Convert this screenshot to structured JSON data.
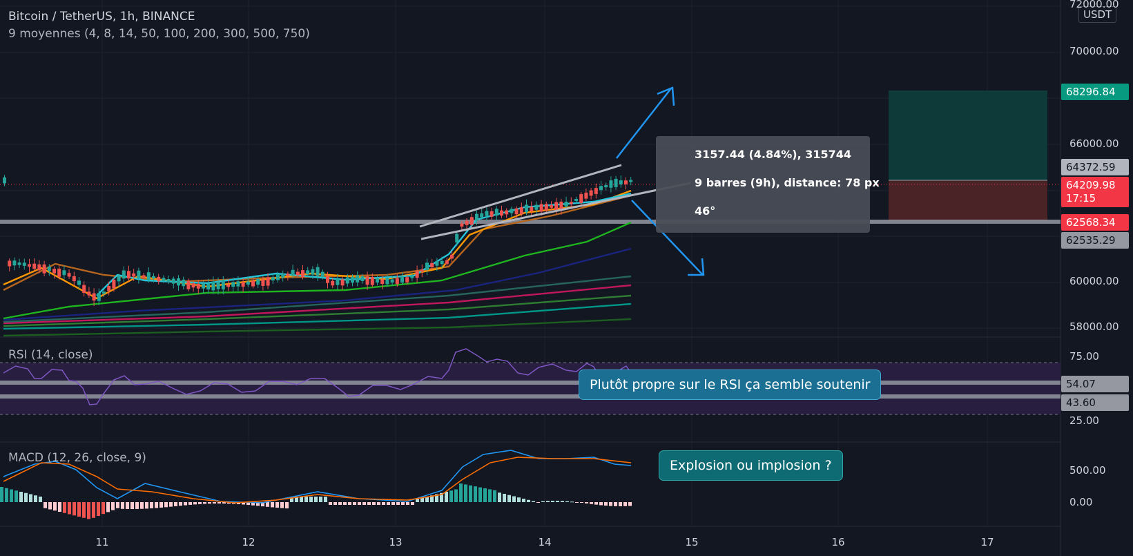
{
  "header": {
    "symbol": "Bitcoin / TetherUS, 1h, BINANCE",
    "indicator": "9 moyennes (4, 8, 14, 50, 100, 200, 300, 500, 750)"
  },
  "price_axis": {
    "currency": "USDT",
    "ticks": [
      "72000.00",
      "70000.00",
      "66000.00",
      "60000.00",
      "58000.00"
    ]
  },
  "price_labels": {
    "target": "68296.84",
    "upper": "64372.59",
    "current": "64209.98",
    "countdown": "17:15",
    "stop": "62568.34",
    "support": "62535.29"
  },
  "time_axis": [
    "11",
    "12",
    "13",
    "14",
    "15",
    "16",
    "17"
  ],
  "measure": {
    "line1": "3157.44 (4.84%), 315744",
    "line2": "9 barres (9h), distance: 78 px",
    "line3": "46°"
  },
  "rsi": {
    "title": "RSI (14, close)",
    "ticks": [
      "75.00",
      "25.00"
    ],
    "levels": [
      "54.07",
      "43.60"
    ],
    "note": "Plutôt propre sur le RSI ça semble soutenir"
  },
  "macd": {
    "title": "MACD (12, 26, close, 9)",
    "ticks": [
      "500.00",
      "0.00"
    ],
    "note": "Explosion ou implosion ?"
  },
  "colors": {
    "background": "#131722",
    "up": "#26a69a",
    "down": "#ef5350",
    "rsi": "#7e57c2",
    "macd": "#2196f3",
    "signal": "#ff6d00"
  }
}
